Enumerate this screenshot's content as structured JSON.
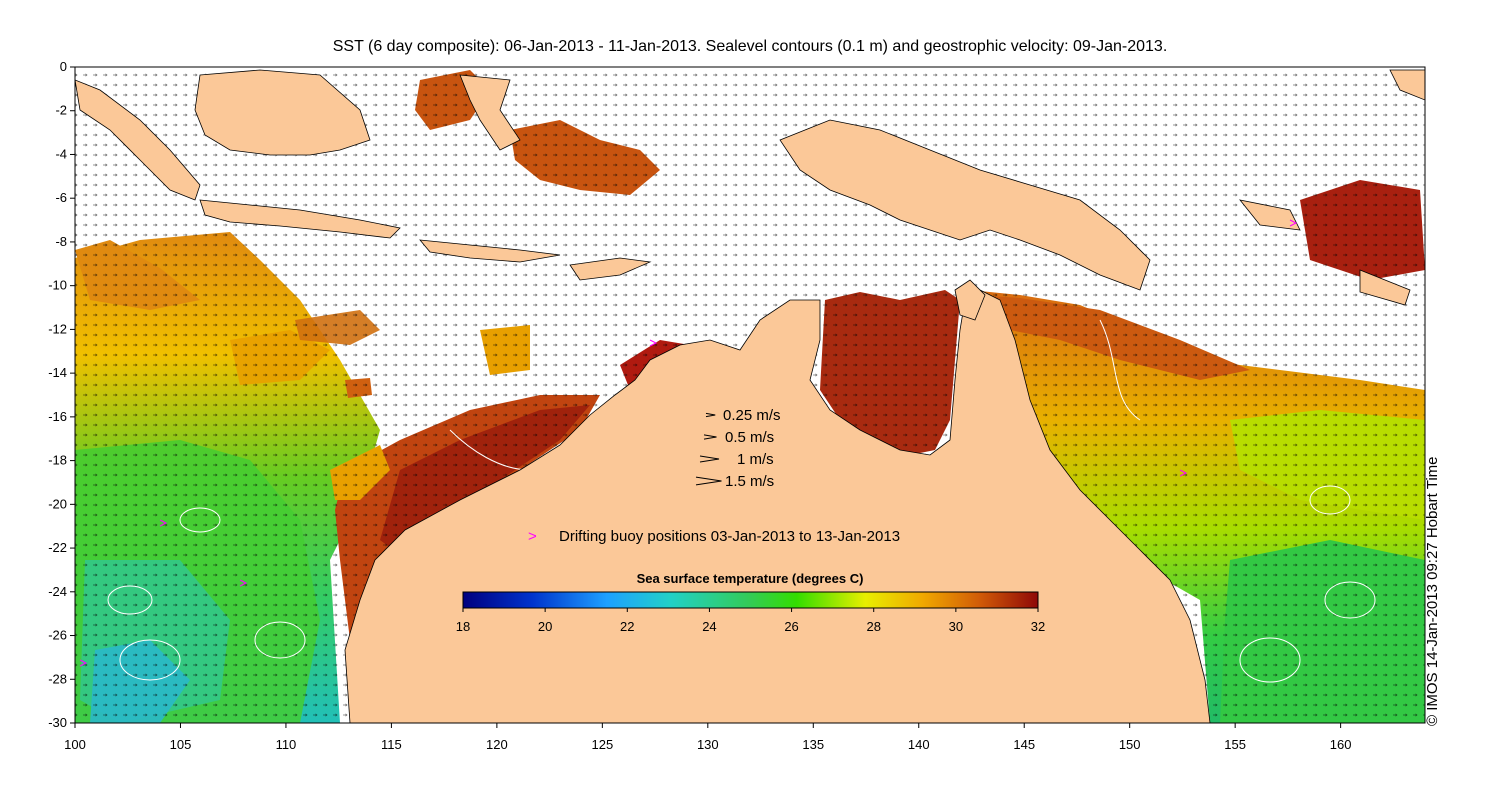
{
  "title": "SST (6 day composite): 06-Jan-2013 - 11-Jan-2013. Sealevel contours (0.1 m) and geostrophic velocity: 09-Jan-2013.",
  "credit": "© IMOS 14-Jan-2013 09:27 Hobart Time",
  "axes": {
    "x_ticks": [
      "100",
      "105",
      "110",
      "115",
      "120",
      "125",
      "130",
      "135",
      "140",
      "145",
      "150",
      "155",
      "160"
    ],
    "y_ticks": [
      "0",
      "-2",
      "-4",
      "-6",
      "-8",
      "-10",
      "-12",
      "-14",
      "-16",
      "-18",
      "-20",
      "-22",
      "-24",
      "-26",
      "-28",
      "-30"
    ],
    "lon_range": [
      100,
      164
    ],
    "lat_range": [
      -30,
      0
    ]
  },
  "velocity_legend": [
    {
      "label": "0.25 m/s",
      "speed": 0.25
    },
    {
      "label": "0.5 m/s",
      "speed": 0.5
    },
    {
      "label": "1 m/s",
      "speed": 1
    },
    {
      "label": "1.5 m/s",
      "speed": 1.5
    }
  ],
  "buoy_legend": {
    "symbol": ">",
    "label": "Drifting buoy positions 03-Jan-2013 to 13-Jan-2013"
  },
  "colorbar": {
    "title": "Sea surface temperature (degrees C)",
    "ticks": [
      "18",
      "20",
      "22",
      "24",
      "26",
      "28",
      "30",
      "32"
    ],
    "range": [
      18,
      32
    ]
  },
  "colors": {
    "land": "#fbc898",
    "no_data": "#ffffff",
    "buoy": "#ff00ff",
    "contour": "#ffffff",
    "arrow": "#000000"
  }
}
